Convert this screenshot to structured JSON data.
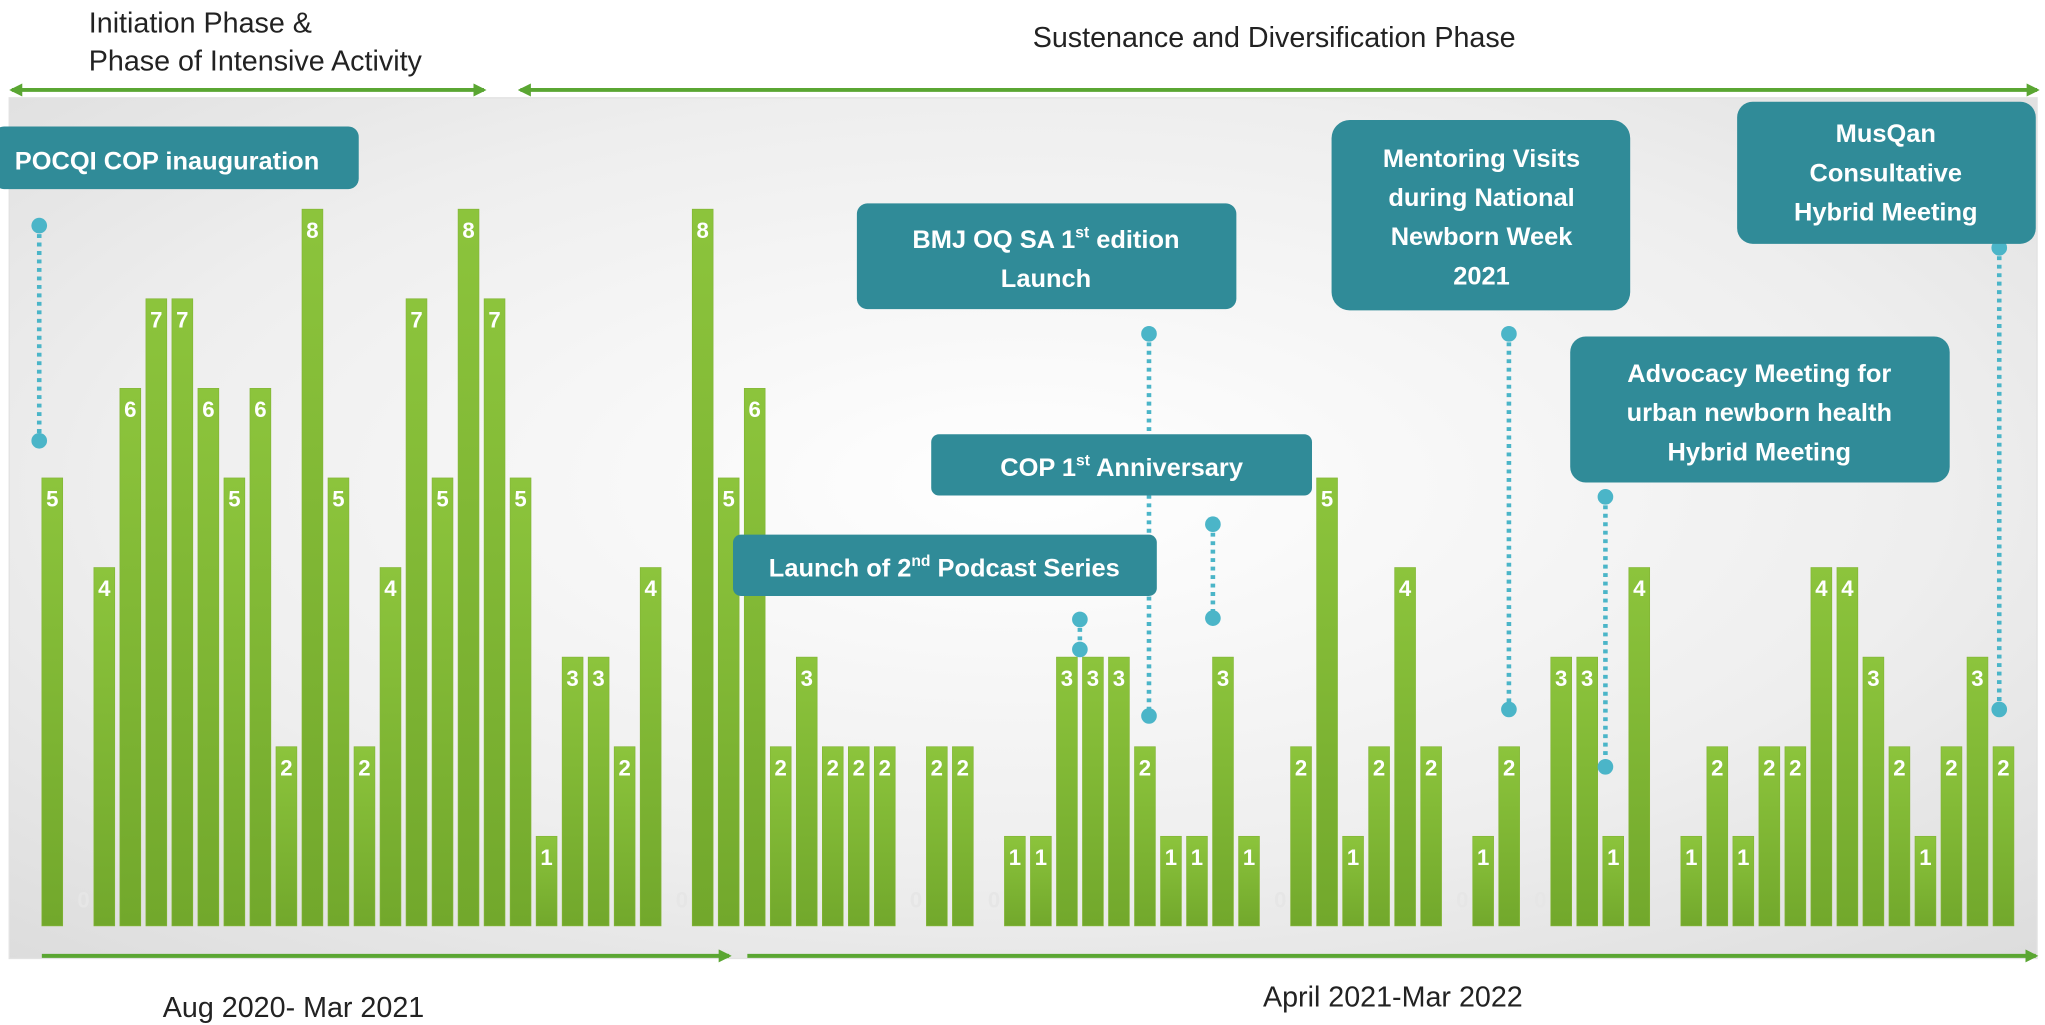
{
  "chart_data": {
    "type": "bar",
    "color": "#82b535",
    "values": [
      5,
      0,
      4,
      6,
      7,
      7,
      6,
      5,
      6,
      2,
      8,
      5,
      2,
      4,
      7,
      5,
      8,
      7,
      5,
      1,
      3,
      3,
      2,
      4,
      0,
      8,
      5,
      6,
      2,
      3,
      2,
      2,
      2,
      0,
      2,
      2,
      0,
      1,
      1,
      3,
      3,
      3,
      2,
      1,
      1,
      3,
      1,
      0,
      2,
      5,
      1,
      2,
      4,
      2,
      0,
      1,
      2,
      0,
      3,
      3,
      1,
      4,
      0,
      1,
      2,
      1,
      2,
      2,
      4,
      4,
      3,
      2,
      1,
      2,
      3,
      2
    ],
    "phases_top": [
      {
        "lines": [
          "Initiation Phase &",
          "Phase of Intensive Activity"
        ]
      },
      {
        "lines": [
          "Sustenance and Diversification Phase"
        ]
      }
    ],
    "periods_bottom": [
      "Aug 2020- Mar 2021",
      "April 2021-Mar 2022"
    ],
    "annotations": [
      {
        "lines": [
          [
            "POCQI COP inauguration"
          ]
        ]
      },
      {
        "lines": [
          [
            "BMJ OQ SA 1",
            "st",
            " edition"
          ],
          [
            "Launch"
          ]
        ]
      },
      {
        "lines": [
          [
            "COP 1",
            "st",
            " Anniversary"
          ]
        ]
      },
      {
        "lines": [
          [
            "Launch of 2",
            "nd",
            " Podcast Series"
          ]
        ]
      },
      {
        "lines": [
          [
            "Mentoring Visits"
          ],
          [
            "during National"
          ],
          [
            "Newborn Week"
          ],
          [
            "2021"
          ]
        ]
      },
      {
        "lines": [
          [
            "Advocacy Meeting for"
          ],
          [
            "urban newborn health"
          ],
          [
            "Hybrid Meeting"
          ]
        ]
      },
      {
        "lines": [
          [
            "MusQan"
          ],
          [
            "Consultative"
          ],
          [
            "Hybrid Meeting"
          ]
        ]
      }
    ]
  }
}
